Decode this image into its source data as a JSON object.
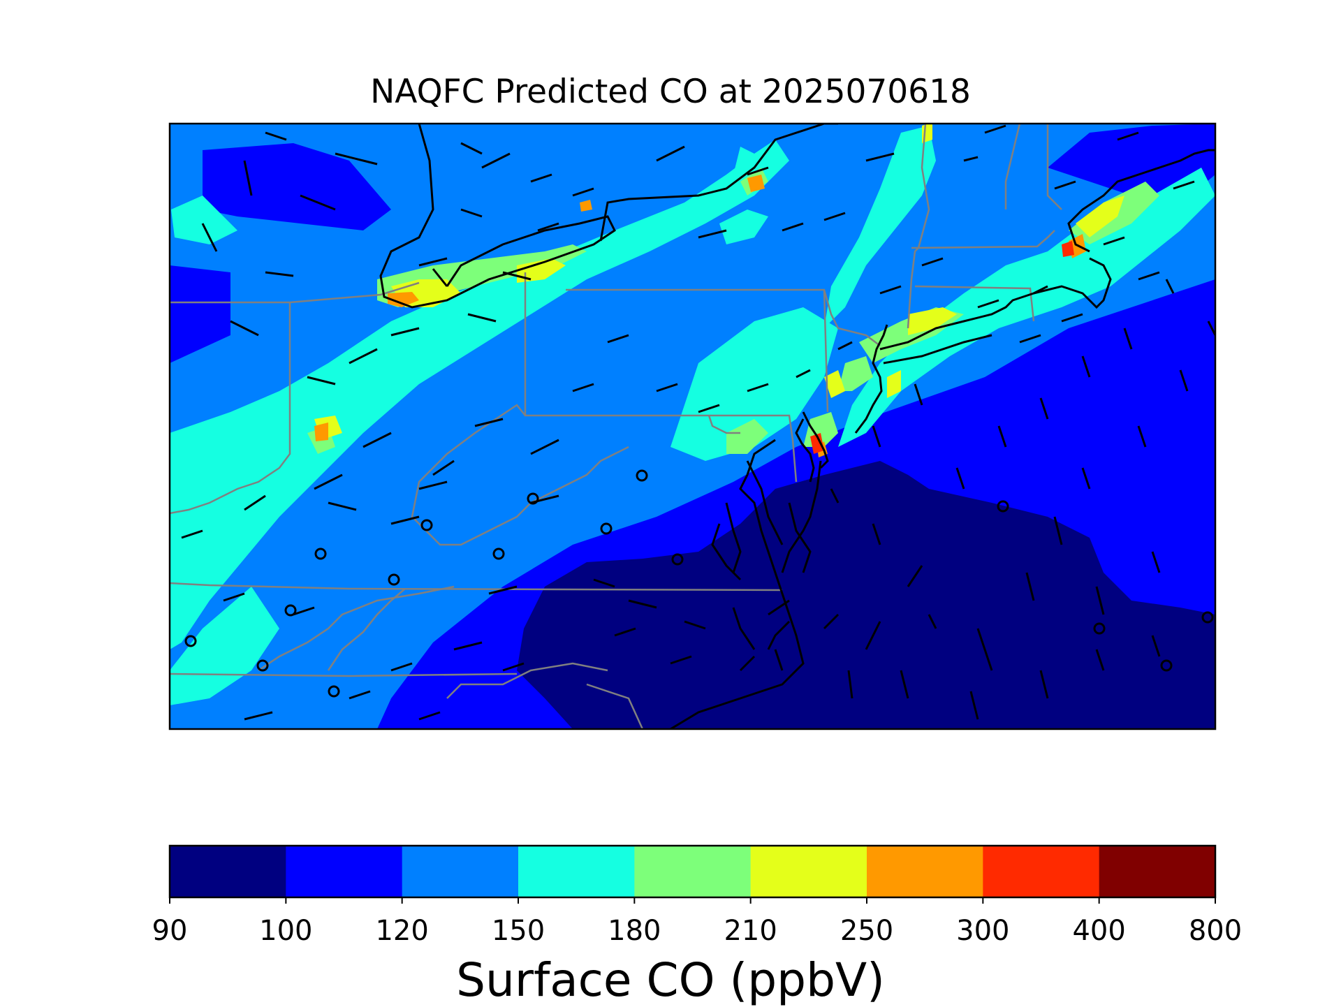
{
  "title": "NAQFC Predicted CO at 2025070618",
  "colorbar": {
    "label": "Surface CO (ppbV)",
    "ticks": [
      "90",
      "100",
      "120",
      "150",
      "180",
      "210",
      "250",
      "300",
      "400",
      "800"
    ],
    "bins": [
      {
        "from": 90,
        "to": 100,
        "color": "#000080"
      },
      {
        "from": 100,
        "to": 120,
        "color": "#0000ff"
      },
      {
        "from": 120,
        "to": 150,
        "color": "#0080ff"
      },
      {
        "from": 150,
        "to": 180,
        "color": "#15ffe1"
      },
      {
        "from": 180,
        "to": 210,
        "color": "#7dff7a"
      },
      {
        "from": 210,
        "to": 250,
        "color": "#e4ff1a"
      },
      {
        "from": 250,
        "to": 300,
        "color": "#ff9900"
      },
      {
        "from": 300,
        "to": 400,
        "color": "#ff2a00"
      },
      {
        "from": 400,
        "to": 800,
        "color": "#800000"
      }
    ]
  },
  "map": {
    "region": "Northeastern United States",
    "field": "surface CO concentration",
    "overlays": [
      "wind barbs",
      "state borders (gray)",
      "coastlines and lakes (black)"
    ],
    "calm_wind_marker": "circle"
  }
}
